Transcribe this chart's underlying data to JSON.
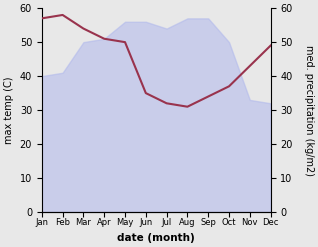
{
  "months": [
    "Jan",
    "Feb",
    "Mar",
    "Apr",
    "May",
    "Jun",
    "Jul",
    "Aug",
    "Sep",
    "Oct",
    "Nov",
    "Dec"
  ],
  "temp_max": [
    40,
    41,
    50,
    51,
    56,
    56,
    54,
    57,
    57,
    50,
    33,
    32
  ],
  "precipitation": [
    57,
    58,
    54,
    51,
    50,
    35,
    32,
    31,
    34,
    37,
    43,
    49
  ],
  "temp_fill_color": "#b0b8ec",
  "temp_fill_alpha": 0.55,
  "precip_color": "#99334d",
  "ylabel_left": "max temp (C)",
  "ylabel_right": "med. precipitation (kg/m2)",
  "xlabel": "date (month)",
  "ylim_left": [
    0,
    60
  ],
  "ylim_right": [
    0,
    60
  ],
  "fig_bg": "#e8e8e8"
}
